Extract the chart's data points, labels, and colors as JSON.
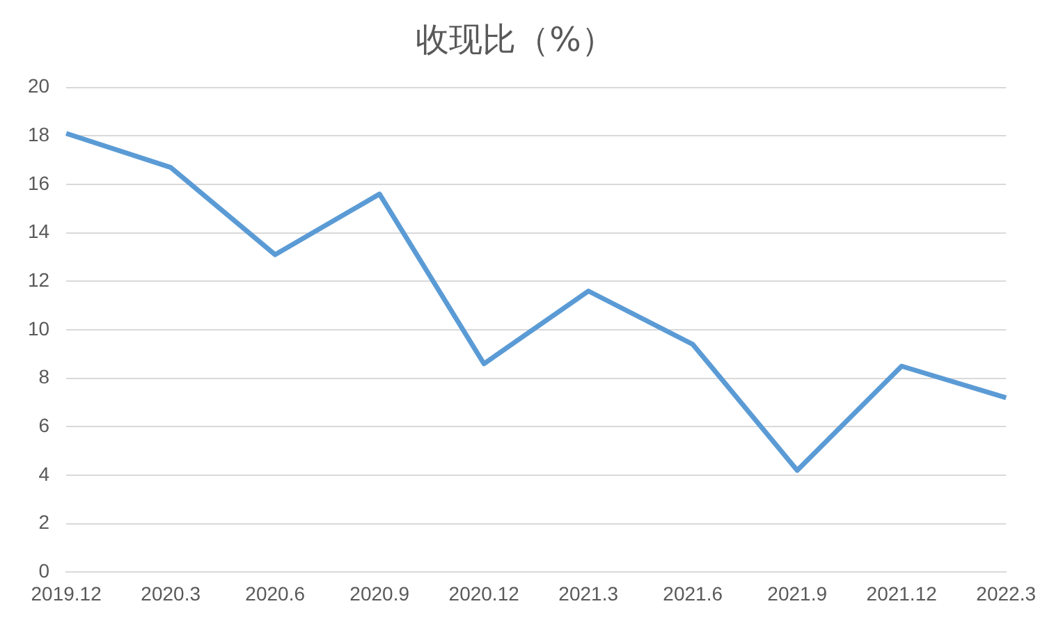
{
  "chart_data": {
    "type": "line",
    "title": "收现比（%）",
    "categories": [
      "2019.12",
      "2020.3",
      "2020.6",
      "2020.9",
      "2020.12",
      "2021.3",
      "2021.6",
      "2021.9",
      "2021.12",
      "2022.3"
    ],
    "series": [
      {
        "color": "#5b9bd5",
        "values": [
          18.1,
          16.7,
          13.1,
          15.6,
          8.6,
          11.6,
          9.4,
          4.2,
          8.5,
          7.2
        ]
      }
    ],
    "ylim": [
      0,
      20
    ],
    "yticks": [
      0,
      2,
      4,
      6,
      8,
      10,
      12,
      14,
      16,
      18,
      20
    ],
    "grid": "y",
    "legend": false,
    "marker": "none",
    "line_style": "solid"
  }
}
